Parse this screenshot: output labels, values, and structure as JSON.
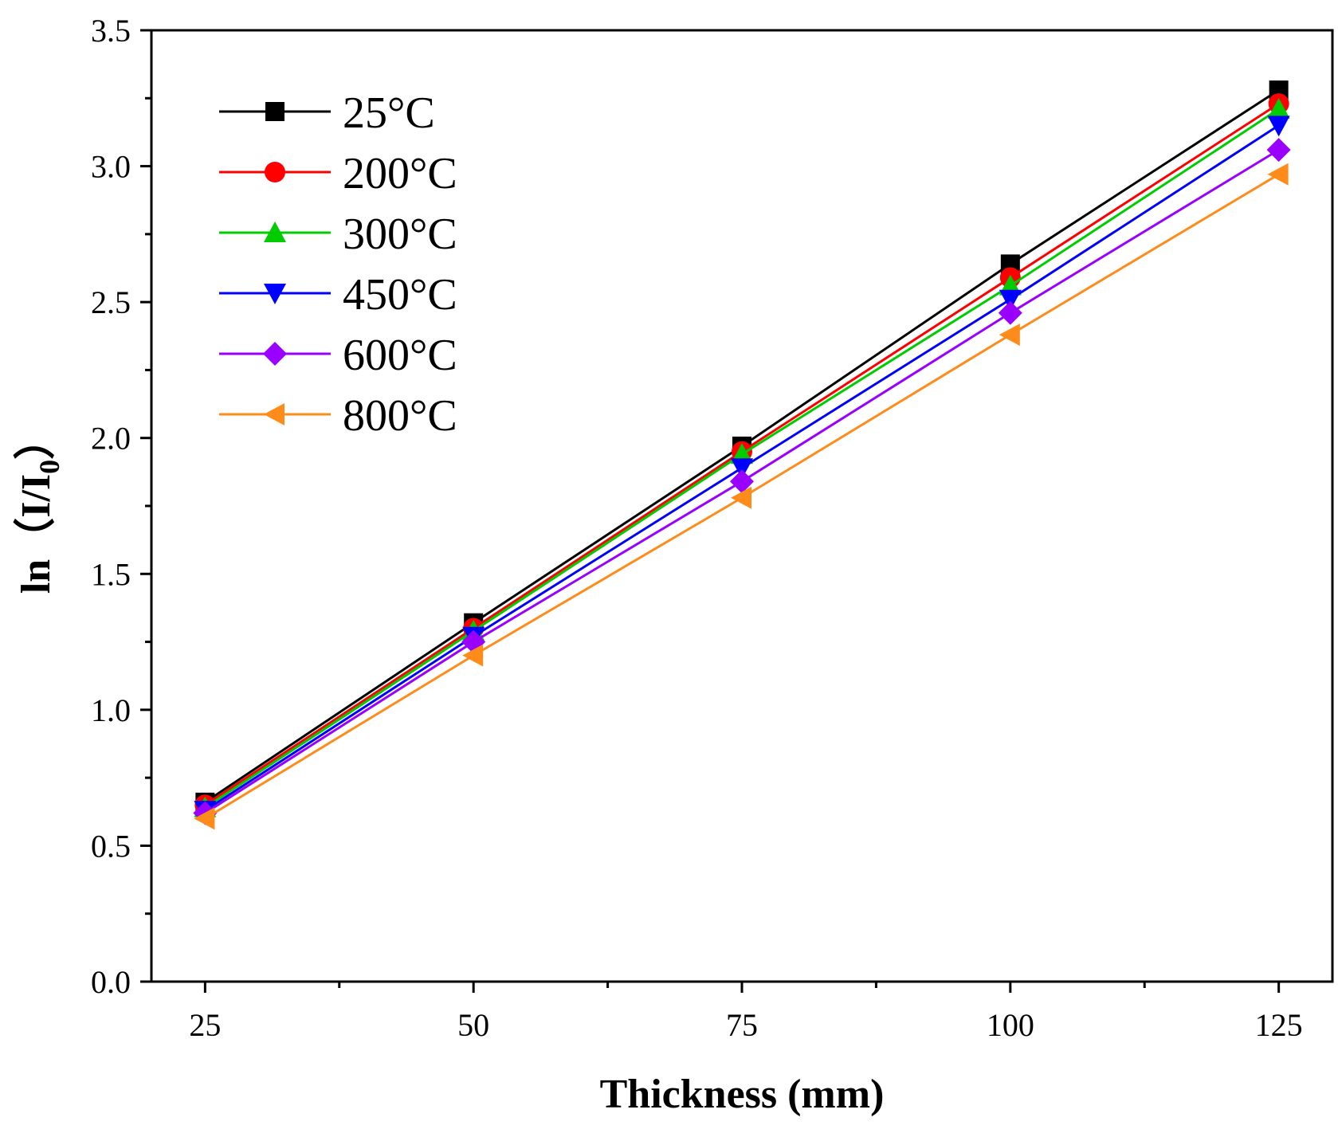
{
  "chart_data": {
    "type": "line",
    "title": "",
    "xlabel": "Thickness (mm)",
    "ylabel": {
      "prefix": "ln（I/I",
      "subscript": "0",
      "suffix": "）"
    },
    "x": [
      25,
      50,
      75,
      100,
      125
    ],
    "x_tick_labels": [
      "25",
      "50",
      "75",
      "100",
      "125"
    ],
    "y_tick_labels": [
      "0.0",
      "0.5",
      "1.0",
      "1.5",
      "2.0",
      "2.5",
      "3.0",
      "3.5"
    ],
    "xlim": [
      20,
      130
    ],
    "ylim": [
      0,
      3.5
    ],
    "grid": false,
    "legend_position": "top-left",
    "series": [
      {
        "name": "25°C",
        "color": "#000000",
        "marker": "square",
        "values": [
          0.66,
          1.32,
          1.97,
          2.64,
          3.28
        ]
      },
      {
        "name": "200°C",
        "color": "#ff0000",
        "marker": "circle",
        "values": [
          0.65,
          1.3,
          1.95,
          2.59,
          3.23
        ]
      },
      {
        "name": "300°C",
        "color": "#00cc00",
        "marker": "triangle-up",
        "values": [
          0.64,
          1.29,
          1.94,
          2.56,
          3.21
        ]
      },
      {
        "name": "450°C",
        "color": "#0000ff",
        "marker": "triangle-down",
        "values": [
          0.63,
          1.27,
          1.89,
          2.51,
          3.15
        ]
      },
      {
        "name": "600°C",
        "color": "#9900ff",
        "marker": "diamond",
        "values": [
          0.62,
          1.25,
          1.84,
          2.46,
          3.06
        ]
      },
      {
        "name": "800°C",
        "color": "#ff8c1a",
        "marker": "triangle-left",
        "values": [
          0.6,
          1.2,
          1.78,
          2.38,
          2.97
        ]
      }
    ]
  }
}
